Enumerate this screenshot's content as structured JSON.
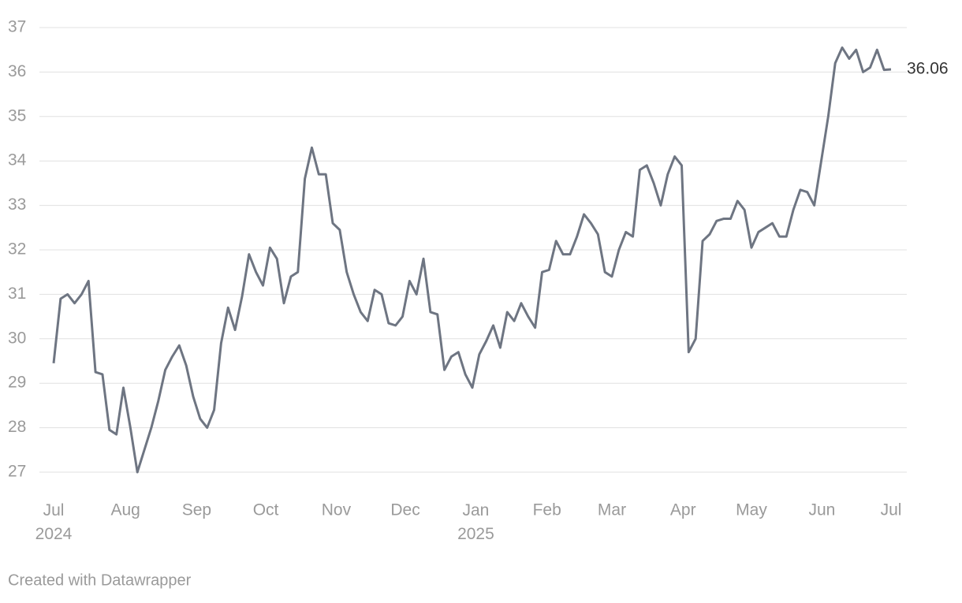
{
  "chart_data": {
    "type": "line",
    "series": [
      {
        "color": "#6e7582",
        "values": [
          29.45,
          30.9,
          31.0,
          30.8,
          31.0,
          31.3,
          29.25,
          29.2,
          27.95,
          27.85,
          28.9,
          28.0,
          27.0,
          27.5,
          28.0,
          28.6,
          29.3,
          29.6,
          29.85,
          29.4,
          28.7,
          28.2,
          28.0,
          28.4,
          29.9,
          30.7,
          30.2,
          30.95,
          31.9,
          31.5,
          31.2,
          32.05,
          31.8,
          30.8,
          31.4,
          31.5,
          33.6,
          34.3,
          33.7,
          33.7,
          32.6,
          32.45,
          31.5,
          31.0,
          30.6,
          30.4,
          31.1,
          31.0,
          30.35,
          30.3,
          30.5,
          31.3,
          31.0,
          31.8,
          30.6,
          30.55,
          29.3,
          29.6,
          29.7,
          29.2,
          28.9,
          29.65,
          29.95,
          30.3,
          29.8,
          30.6,
          30.4,
          30.8,
          30.5,
          30.25,
          31.5,
          31.55,
          32.2,
          31.9,
          31.9,
          32.3,
          32.8,
          32.6,
          32.35,
          31.5,
          31.4,
          32.0,
          32.4,
          32.3,
          33.8,
          33.9,
          33.5,
          33.0,
          33.7,
          34.1,
          33.9,
          29.7,
          30.0,
          32.2,
          32.35,
          32.65,
          32.7,
          32.7,
          33.1,
          32.9,
          32.05,
          32.4,
          32.5,
          32.6,
          32.3,
          32.3,
          32.9,
          33.35,
          33.3,
          33.0,
          34.0,
          35.0,
          36.2,
          36.55,
          36.3,
          36.5,
          36.0,
          36.1,
          36.5,
          36.05,
          36.06
        ]
      }
    ],
    "xlim": [
      0,
      120
    ],
    "xticks": [
      {
        "value": 0,
        "label": "Jul 2024"
      },
      {
        "value": 10.3,
        "label": "Aug"
      },
      {
        "value": 20.5,
        "label": "Sep"
      },
      {
        "value": 30.4,
        "label": "Oct"
      },
      {
        "value": 40.5,
        "label": "Nov"
      },
      {
        "value": 50.4,
        "label": "Dec"
      },
      {
        "value": 60.5,
        "label": "Jan 2025"
      },
      {
        "value": 70.7,
        "label": "Feb"
      },
      {
        "value": 80,
        "label": "Mar"
      },
      {
        "value": 90.2,
        "label": "Apr"
      },
      {
        "value": 100,
        "label": "May"
      },
      {
        "value": 110.1,
        "label": "Jun"
      },
      {
        "value": 120,
        "label": "Jul"
      }
    ],
    "ylim": [
      27,
      37
    ],
    "yticks": [
      27,
      28,
      29,
      30,
      31,
      32,
      33,
      34,
      35,
      36,
      37
    ],
    "grid": true,
    "credit": "Created with Datawrapper"
  }
}
